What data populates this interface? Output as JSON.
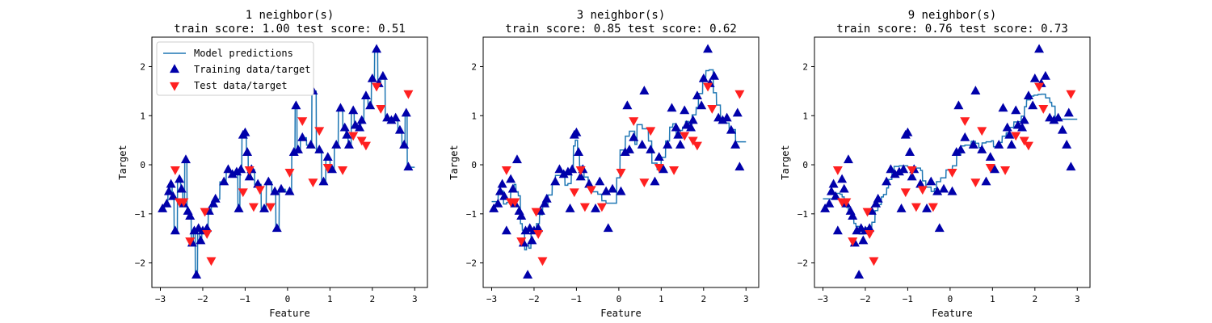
{
  "colors": {
    "prediction": "#1f77b4",
    "train": "#0000aa",
    "test": "#ff2020"
  },
  "legend": {
    "location": "upper-left",
    "entries": [
      "Model predictions",
      "Training data/target",
      "Test data/target"
    ]
  },
  "chart_data": [
    {
      "type": "line+scatter",
      "title_line1": "1 neighbor(s)",
      "title_line2": "train score: 1.00 test score: 0.51",
      "n_neighbors": 1,
      "xlabel": "Feature",
      "ylabel": "Target",
      "xlim": [
        -3.2,
        3.3
      ],
      "ylim": [
        -2.5,
        2.6
      ],
      "xticks": [
        "-3",
        "-2",
        "-1",
        "0",
        "1",
        "2",
        "3"
      ],
      "yticks": [
        "-2",
        "-1",
        "0",
        "1",
        "2"
      ],
      "show_legend": true
    },
    {
      "type": "line+scatter",
      "title_line1": "3 neighbor(s)",
      "title_line2": "train score: 0.85 test score: 0.62",
      "n_neighbors": 3,
      "xlabel": "Feature",
      "ylabel": "Target",
      "xlim": [
        -3.2,
        3.3
      ],
      "ylim": [
        -2.5,
        2.6
      ],
      "xticks": [
        "-3",
        "-2",
        "-1",
        "0",
        "1",
        "2",
        "3"
      ],
      "yticks": [
        "-2",
        "-1",
        "0",
        "1",
        "2"
      ],
      "show_legend": false
    },
    {
      "type": "line+scatter",
      "title_line1": "9 neighbor(s)",
      "title_line2": "train score: 0.76 test score: 0.73",
      "n_neighbors": 9,
      "xlabel": "Feature",
      "ylabel": "Target",
      "xlim": [
        -3.2,
        3.3
      ],
      "ylim": [
        -2.5,
        2.6
      ],
      "xticks": [
        "-3",
        "-2",
        "-1",
        "0",
        "1",
        "2",
        "3"
      ],
      "yticks": [
        "-2",
        "-1",
        "0",
        "1",
        "2"
      ],
      "show_legend": false
    }
  ],
  "train_points": [
    [
      -2.95,
      -0.9
    ],
    [
      -2.85,
      -0.8
    ],
    [
      -2.8,
      -0.55
    ],
    [
      -2.75,
      -0.4
    ],
    [
      -2.7,
      -0.65
    ],
    [
      -2.65,
      -1.35
    ],
    [
      -2.55,
      -0.3
    ],
    [
      -2.5,
      -0.5
    ],
    [
      -2.45,
      -0.8
    ],
    [
      -2.4,
      0.1
    ],
    [
      -2.35,
      -0.95
    ],
    [
      -2.3,
      -1.05
    ],
    [
      -2.25,
      -1.6
    ],
    [
      -2.2,
      -1.35
    ],
    [
      -2.15,
      -2.25
    ],
    [
      -2.1,
      -1.3
    ],
    [
      -2.05,
      -1.55
    ],
    [
      -2.0,
      -1.35
    ],
    [
      -1.9,
      -1.3
    ],
    [
      -1.85,
      -0.95
    ],
    [
      -1.75,
      -0.8
    ],
    [
      -1.7,
      -0.7
    ],
    [
      -1.5,
      -0.35
    ],
    [
      -1.4,
      -0.1
    ],
    [
      -1.3,
      -0.2
    ],
    [
      -1.2,
      -0.15
    ],
    [
      -1.15,
      -0.9
    ],
    [
      -1.1,
      -0.1
    ],
    [
      -1.05,
      0.6
    ],
    [
      -1.0,
      0.65
    ],
    [
      -0.95,
      0.25
    ],
    [
      -0.9,
      -0.25
    ],
    [
      -0.85,
      -0.1
    ],
    [
      -0.7,
      -0.4
    ],
    [
      -0.55,
      -0.9
    ],
    [
      -0.45,
      -0.35
    ],
    [
      -0.3,
      -0.55
    ],
    [
      -0.25,
      -1.3
    ],
    [
      -0.15,
      -0.5
    ],
    [
      0.05,
      -0.55
    ],
    [
      0.15,
      0.25
    ],
    [
      0.2,
      1.2
    ],
    [
      0.25,
      0.3
    ],
    [
      0.35,
      0.55
    ],
    [
      0.55,
      0.4
    ],
    [
      0.6,
      1.5
    ],
    [
      0.75,
      0.3
    ],
    [
      0.85,
      -0.35
    ],
    [
      0.95,
      0.15
    ],
    [
      1.05,
      -0.1
    ],
    [
      1.15,
      0.4
    ],
    [
      1.25,
      1.15
    ],
    [
      1.35,
      0.75
    ],
    [
      1.4,
      0.6
    ],
    [
      1.45,
      0.4
    ],
    [
      1.55,
      1.1
    ],
    [
      1.6,
      0.8
    ],
    [
      1.7,
      0.75
    ],
    [
      1.75,
      0.9
    ],
    [
      1.85,
      1.4
    ],
    [
      1.95,
      1.2
    ],
    [
      2.0,
      1.75
    ],
    [
      2.1,
      2.35
    ],
    [
      2.15,
      1.65
    ],
    [
      2.25,
      1.8
    ],
    [
      2.35,
      0.95
    ],
    [
      2.45,
      0.9
    ],
    [
      2.55,
      0.95
    ],
    [
      2.65,
      0.7
    ],
    [
      2.75,
      0.4
    ],
    [
      2.8,
      1.05
    ],
    [
      2.85,
      -0.05
    ]
  ],
  "test_points": [
    [
      -2.65,
      -0.1
    ],
    [
      -2.55,
      -0.75
    ],
    [
      -2.45,
      -0.75
    ],
    [
      -2.3,
      -1.55
    ],
    [
      -1.95,
      -0.95
    ],
    [
      -1.9,
      -1.4
    ],
    [
      -1.8,
      -1.95
    ],
    [
      -1.05,
      -0.55
    ],
    [
      -0.9,
      -0.1
    ],
    [
      -0.8,
      -0.85
    ],
    [
      -0.65,
      -0.5
    ],
    [
      -0.4,
      -0.85
    ],
    [
      0.05,
      -0.15
    ],
    [
      0.35,
      0.9
    ],
    [
      0.6,
      -0.35
    ],
    [
      0.75,
      0.7
    ],
    [
      0.95,
      -0.05
    ],
    [
      1.3,
      -0.1
    ],
    [
      1.55,
      0.6
    ],
    [
      1.75,
      0.5
    ],
    [
      1.85,
      0.4
    ],
    [
      2.1,
      1.6
    ],
    [
      2.2,
      1.15
    ],
    [
      2.85,
      1.45
    ]
  ]
}
